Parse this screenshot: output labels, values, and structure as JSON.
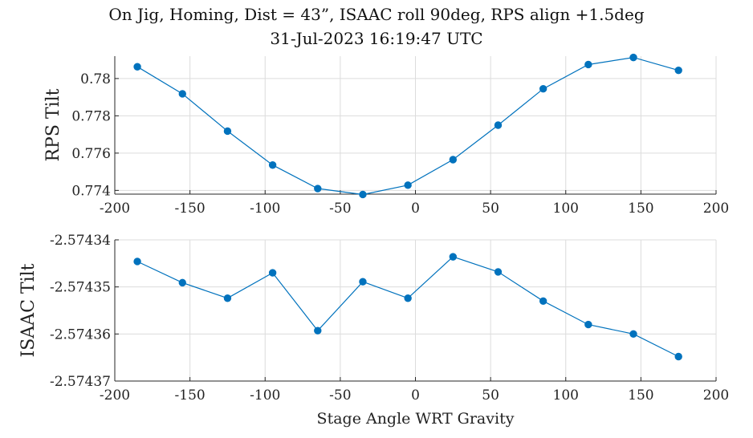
{
  "figure": {
    "title_line1": "On Jig, Homing, Dist = 43”, ISAAC roll 90deg, RPS align +1.5deg",
    "title_line2": "31-Jul-2023 16:19:47 UTC"
  },
  "chart_data": [
    {
      "type": "line",
      "title": "",
      "xlabel": "",
      "ylabel": "RPS Tilt",
      "xlim": [
        -200,
        200
      ],
      "ylim": [
        0.7738,
        0.7812
      ],
      "xticks": [
        -200,
        -150,
        -100,
        -50,
        0,
        50,
        100,
        150,
        200
      ],
      "xtick_labels": [
        "-200",
        "-150",
        "-100",
        "-50",
        "0",
        "50",
        "100",
        "150",
        "200"
      ],
      "yticks": [
        0.774,
        0.776,
        0.778,
        0.78
      ],
      "ytick_labels": [
        "0.774",
        "0.776",
        "0.778",
        "0.78"
      ],
      "grid": true,
      "color": "#0072BD",
      "marker": "circle",
      "x": [
        -185,
        -155,
        -125,
        -95,
        -65,
        -35,
        -5,
        25,
        55,
        85,
        115,
        145,
        175
      ],
      "y": [
        0.78063,
        0.77918,
        0.77718,
        0.77536,
        0.7741,
        0.77378,
        0.77428,
        0.77565,
        0.7775,
        0.77945,
        0.78075,
        0.78113,
        0.78044
      ]
    },
    {
      "type": "line",
      "title": "",
      "xlabel": "Stage Angle WRT Gravity",
      "ylabel": "ISAAC Tilt",
      "xlim": [
        -200,
        200
      ],
      "ylim": [
        -2.57437,
        -2.57434
      ],
      "xticks": [
        -200,
        -150,
        -100,
        -50,
        0,
        50,
        100,
        150,
        200
      ],
      "xtick_labels": [
        "-200",
        "-150",
        "-100",
        "-50",
        "0",
        "50",
        "100",
        "150",
        "200"
      ],
      "yticks": [
        -2.57437,
        -2.57436,
        -2.57435,
        -2.57434
      ],
      "ytick_labels": [
        "-2.57437",
        "-2.57436",
        "-2.57435",
        "-2.57434"
      ],
      "grid": true,
      "color": "#0072BD",
      "marker": "circle",
      "x": [
        -185,
        -155,
        -125,
        -95,
        -65,
        -35,
        -5,
        25,
        55,
        85,
        115,
        145,
        175
      ],
      "y": [
        -2.5743446,
        -2.5743491,
        -2.5743524,
        -2.574347,
        -2.5743593,
        -2.5743489,
        -2.5743524,
        -2.5743436,
        -2.5743468,
        -2.574353,
        -2.574358,
        -2.57436,
        -2.5743648
      ]
    }
  ]
}
